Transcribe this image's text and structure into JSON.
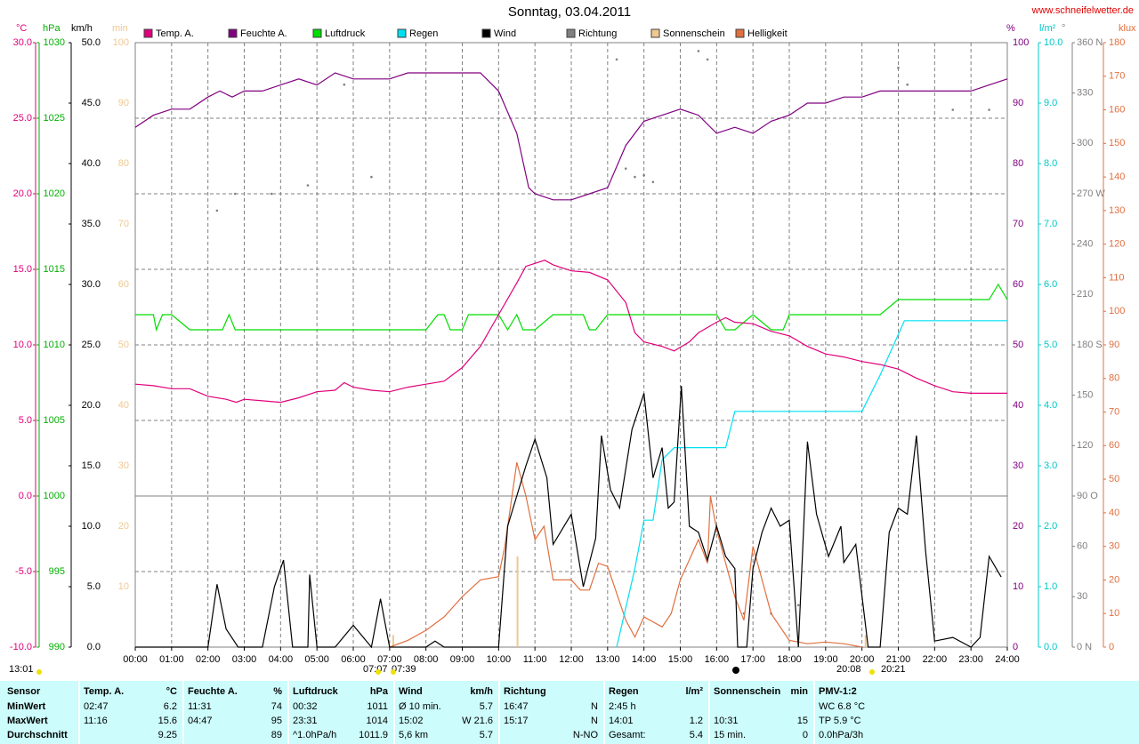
{
  "chart_data": {
    "type": "line",
    "title": "Sonntag, 03.04.2011",
    "source": "www.schneifelwetter.de",
    "xlim": [
      0,
      24
    ],
    "xticks": [
      {
        "value": 0,
        "label": "00:00"
      },
      {
        "value": 1,
        "label": "01:00"
      },
      {
        "value": 2,
        "label": "02:00"
      },
      {
        "value": 3,
        "label": "03:00"
      },
      {
        "value": 4,
        "label": "04:00"
      },
      {
        "value": 5,
        "label": "05:00"
      },
      {
        "value": 6,
        "label": "06:00"
      },
      {
        "value": 7,
        "label": "07:00"
      },
      {
        "value": 8,
        "label": "08:00"
      },
      {
        "value": 9,
        "label": "09:00"
      },
      {
        "value": 10,
        "label": "10:00"
      },
      {
        "value": 11,
        "label": "11:00"
      },
      {
        "value": 12,
        "label": "12:00"
      },
      {
        "value": 13,
        "label": "13:00"
      },
      {
        "value": 14,
        "label": "14:00"
      },
      {
        "value": 15,
        "label": "15:00"
      },
      {
        "value": 16,
        "label": "16:00"
      },
      {
        "value": 17,
        "label": "17:00"
      },
      {
        "value": 18,
        "label": "18:00"
      },
      {
        "value": 19,
        "label": "19:00"
      },
      {
        "value": 20,
        "label": "20:00"
      },
      {
        "value": 21,
        "label": "21:00"
      },
      {
        "value": 22,
        "label": "22:00"
      },
      {
        "value": 23,
        "label": "23:00"
      },
      {
        "value": 24,
        "label": "24:00"
      }
    ],
    "grid": true,
    "axes": [
      {
        "unit": "°C",
        "color": "#e0007a",
        "lim": [
          -10,
          30
        ],
        "ticks": [
          {
            "value": -10,
            "label": "-10.0"
          },
          {
            "value": -5,
            "label": "-5.0"
          },
          {
            "value": 0,
            "label": "0.0"
          },
          {
            "value": 5,
            "label": "5.0"
          },
          {
            "value": 10,
            "label": "10.0"
          },
          {
            "value": 15,
            "label": "15.0"
          },
          {
            "value": 20,
            "label": "20.0"
          },
          {
            "value": 25,
            "label": "25.0"
          },
          {
            "value": 30,
            "label": "30.0"
          }
        ]
      },
      {
        "unit": "hPa",
        "color": "#00b000",
        "lim": [
          990,
          1030
        ],
        "ticks": [
          990,
          995,
          1000,
          1005,
          1010,
          1015,
          1020,
          1025,
          1030
        ]
      },
      {
        "unit": "km/h",
        "color": "#000000",
        "lim": [
          0,
          50
        ],
        "ticks": [
          {
            "value": 0,
            "label": "0.0"
          },
          {
            "value": 5,
            "label": "5.0"
          },
          {
            "value": 10,
            "label": "10.0"
          },
          {
            "value": 15,
            "label": "15.0"
          },
          {
            "value": 20,
            "label": "20.0"
          },
          {
            "value": 25,
            "label": "25.0"
          },
          {
            "value": 30,
            "label": "30.0"
          },
          {
            "value": 35,
            "label": "35.0"
          },
          {
            "value": 40,
            "label": "40.0"
          },
          {
            "value": 45,
            "label": "45.0"
          },
          {
            "value": 50,
            "label": "50.0"
          }
        ]
      },
      {
        "unit": "min",
        "color": "#f0c890",
        "lim": [
          0,
          100
        ],
        "ticks": [
          10,
          20,
          30,
          40,
          50,
          60,
          70,
          80,
          90,
          100
        ]
      },
      {
        "unit": "%",
        "color": "#800080",
        "lim": [
          0,
          100
        ],
        "ticks": [
          0,
          10,
          20,
          30,
          40,
          50,
          60,
          70,
          80,
          90,
          100
        ]
      },
      {
        "unit": "l/m²",
        "color": "#00c8c8",
        "lim": [
          0,
          10
        ],
        "ticks": [
          {
            "value": 0,
            "label": "0.0"
          },
          {
            "value": 1,
            "label": "1.0"
          },
          {
            "value": 2,
            "label": "2.0"
          },
          {
            "value": 3,
            "label": "3.0"
          },
          {
            "value": 4,
            "label": "4.0"
          },
          {
            "value": 5,
            "label": "5.0"
          },
          {
            "value": 6,
            "label": "6.0"
          },
          {
            "value": 7,
            "label": "7.0"
          },
          {
            "value": 8,
            "label": "8.0"
          },
          {
            "value": 9,
            "label": "9.0"
          },
          {
            "value": 10,
            "label": "10.0"
          }
        ]
      },
      {
        "unit": "°",
        "color": "#808080",
        "lim": [
          0,
          360
        ],
        "ticks": [
          {
            "value": 0,
            "label": "0 N"
          },
          30,
          60,
          {
            "value": 90,
            "label": "90 O"
          },
          120,
          150,
          {
            "value": 180,
            "label": "180 S"
          },
          210,
          240,
          {
            "value": 270,
            "label": "270 W"
          },
          300,
          330,
          {
            "value": 360,
            "label": "360 N"
          }
        ]
      },
      {
        "unit": "klux",
        "color": "#e07040",
        "lim": [
          0,
          180
        ],
        "ticks": [
          0,
          10,
          20,
          30,
          40,
          50,
          60,
          70,
          80,
          90,
          100,
          110,
          120,
          130,
          140,
          150,
          160,
          170,
          180
        ]
      }
    ],
    "series": [
      {
        "name": "Temp. A.",
        "color": "#e0007a",
        "axis": 0,
        "style": "line",
        "x": [
          0,
          0.5,
          1,
          1.5,
          2,
          2.5,
          2.78,
          3,
          3.5,
          4,
          4.5,
          5,
          5.5,
          5.75,
          6,
          6.5,
          7,
          7.5,
          8,
          8.5,
          9,
          9.5,
          10,
          10.5,
          10.75,
          11.27,
          11.5,
          12,
          12.5,
          13,
          13.5,
          13.75,
          14,
          14.5,
          14.83,
          15.25,
          15.5,
          16,
          16.25,
          16.5,
          17,
          17.5,
          18,
          18.5,
          19,
          19.5,
          20,
          20.5,
          21,
          21.5,
          22,
          22.5,
          23,
          23.5,
          24
        ],
        "values": [
          7.4,
          7.3,
          7.1,
          7.1,
          6.6,
          6.4,
          6.2,
          6.4,
          6.3,
          6.2,
          6.5,
          6.9,
          7.0,
          7.5,
          7.2,
          7.0,
          6.9,
          7.2,
          7.4,
          7.6,
          8.5,
          9.9,
          12.0,
          14.1,
          15.2,
          15.6,
          15.3,
          14.9,
          14.8,
          14.3,
          12.8,
          10.8,
          10.2,
          9.9,
          9.6,
          10.2,
          10.8,
          11.5,
          11.8,
          11.5,
          11.4,
          10.9,
          10.6,
          9.9,
          9.4,
          9.2,
          8.9,
          8.7,
          8.4,
          7.8,
          7.3,
          6.9,
          6.8,
          6.8,
          6.8
        ]
      },
      {
        "name": "Feuchte A.",
        "color": "#800080",
        "axis": 4,
        "style": "line",
        "x": [
          0,
          0.5,
          1,
          1.5,
          2,
          2.33,
          2.67,
          3,
          3.5,
          4,
          4.5,
          5,
          5.5,
          6,
          6.5,
          7,
          7.5,
          8,
          8.5,
          9,
          9.5,
          10,
          10.5,
          10.83,
          11,
          11.5,
          12,
          12.5,
          13,
          13.5,
          14,
          14.5,
          15,
          15.5,
          16,
          16.5,
          17,
          17.5,
          18,
          18.5,
          19,
          19.5,
          20,
          20.5,
          21,
          21.5,
          22,
          22.5,
          23,
          23.5,
          24
        ],
        "values": [
          86,
          88,
          89,
          89,
          91,
          92,
          91,
          92,
          92,
          93,
          94,
          93,
          95,
          94,
          94,
          94,
          95,
          95,
          95,
          95,
          95,
          92,
          85,
          76,
          75,
          74,
          74,
          75,
          76,
          83,
          87,
          88,
          89,
          88,
          85,
          86,
          85,
          87,
          88,
          90,
          90,
          91,
          91,
          92,
          92,
          92,
          92,
          92,
          92,
          93,
          94
        ]
      },
      {
        "name": "Luftdruck",
        "color": "#00dd00",
        "axis": 1,
        "style": "line",
        "x": [
          0,
          0.5,
          0.58,
          0.75,
          1,
          1.5,
          2,
          2.4,
          2.58,
          2.75,
          3,
          8,
          8.33,
          8.5,
          8.67,
          9,
          9.17,
          9.33,
          9.5,
          10,
          10.25,
          10.5,
          10.67,
          11,
          11.5,
          12,
          12.33,
          12.5,
          12.67,
          13,
          16,
          16.25,
          16.5,
          17,
          17.5,
          17.83,
          18,
          20.5,
          21,
          23.5,
          23.75,
          24
        ],
        "values": [
          1012,
          1012,
          1011,
          1012,
          1012,
          1011,
          1011,
          1011,
          1012,
          1011,
          1011,
          1011,
          1012,
          1012,
          1011,
          1011,
          1012,
          1012,
          1012,
          1012,
          1011,
          1012,
          1011,
          1011,
          1012,
          1012,
          1012,
          1011,
          1011,
          1012,
          1012,
          1011,
          1011,
          1012,
          1011,
          1011,
          1012,
          1012,
          1013,
          1013,
          1014,
          1013
        ]
      },
      {
        "name": "Regen",
        "color": "#00e0f0",
        "axis": 5,
        "style": "line",
        "x": [
          13.25,
          13.75,
          14,
          14.25,
          14.5,
          14.83,
          16.25,
          16.5,
          20,
          20.5,
          21.17,
          24
        ],
        "values": [
          0,
          1.3,
          2.1,
          2.1,
          3.1,
          3.3,
          3.3,
          3.9,
          3.9,
          4.5,
          5.4,
          5.4
        ]
      },
      {
        "name": "Wind",
        "color": "#000000",
        "axis": 2,
        "style": "line",
        "x": [
          0,
          2,
          2.25,
          2.5,
          2.83,
          3.5,
          3.83,
          4.08,
          4.33,
          4.75,
          4.8,
          5,
          5.5,
          6,
          6.5,
          6.75,
          7,
          8,
          8.25,
          8.5,
          10,
          10.25,
          10.75,
          11,
          11.33,
          11.5,
          12,
          12.33,
          12.67,
          12.83,
          13.08,
          13.33,
          13.67,
          14,
          14.25,
          14.5,
          14.67,
          14.83,
          15.03,
          15.25,
          15.5,
          15.75,
          16,
          16.25,
          16.5,
          16.58,
          16.83,
          17,
          17.25,
          17.5,
          17.75,
          18,
          18.25,
          18.5,
          18.75,
          19.08,
          19.42,
          19.5,
          19.83,
          20.17,
          20.5,
          20.75,
          21,
          21.25,
          21.5,
          21.75,
          22,
          22.5,
          23,
          23.25,
          23.5,
          23.83
        ],
        "values": [
          0,
          0,
          5.2,
          1.5,
          0,
          0,
          5,
          7.2,
          0,
          0,
          6,
          0,
          0,
          1.8,
          0,
          4,
          0,
          0,
          0.5,
          0,
          0,
          10,
          15,
          17.2,
          14,
          8.5,
          11,
          5,
          9,
          17.5,
          13,
          11.5,
          18,
          21,
          14,
          16.5,
          11.5,
          12,
          21.6,
          10,
          9.5,
          7.2,
          10,
          7.5,
          6.5,
          0,
          0,
          6.5,
          9.5,
          11.5,
          10,
          10.5,
          0,
          17,
          11,
          7.5,
          10,
          7,
          8.5,
          0,
          0,
          9.5,
          11.5,
          11,
          17.5,
          8,
          0.5,
          0.8,
          0,
          0.8,
          7.5,
          5.8
        ]
      },
      {
        "name": "Richtung",
        "color": "#808080",
        "axis": 6,
        "style": "dots",
        "x": [
          2.25,
          2.75,
          3.75,
          4.75,
          5.75,
          6.5,
          13.25,
          13.5,
          13.75,
          14,
          14.25,
          15.5,
          15.75,
          16.75,
          17.5,
          18.25,
          21,
          21.25,
          22.5,
          23.5
        ],
        "values": [
          260,
          270,
          270,
          275,
          335,
          280,
          350,
          285,
          280,
          281,
          277,
          355,
          350,
          20,
          20,
          25,
          345,
          335,
          320,
          320
        ]
      },
      {
        "name": "Sonnenschein",
        "color": "#f0c890",
        "axis": 3,
        "style": "bars",
        "x": [
          7.1,
          10.52,
          20.1
        ],
        "values": [
          2,
          15,
          2
        ]
      },
      {
        "name": "Helligkeit",
        "color": "#e07040",
        "axis": 7,
        "style": "line",
        "x": [
          7,
          7.5,
          8,
          8.5,
          9,
          9.5,
          10,
          10.17,
          10.5,
          10.75,
          11,
          11.25,
          11.5,
          12,
          12.25,
          12.5,
          12.75,
          13,
          13.5,
          13.75,
          14,
          14.5,
          14.75,
          15,
          15.5,
          15.75,
          15.83,
          16,
          16.25,
          16.5,
          16.75,
          17,
          17.25,
          17.5,
          18,
          18.5,
          19,
          19.5,
          20
        ],
        "values": [
          0,
          2,
          5,
          9,
          15,
          20,
          21,
          30,
          55,
          45,
          32,
          36,
          20,
          20,
          17,
          17,
          25,
          24,
          8,
          3,
          9,
          6,
          10,
          20,
          32,
          25,
          45,
          35,
          25,
          15,
          8,
          30,
          20,
          10,
          2,
          1,
          1.5,
          1,
          0
        ]
      }
    ],
    "annotations": [
      "13:01",
      "07:07",
      "07:39",
      "20:08",
      "20:21"
    ]
  },
  "table": {
    "header": [
      {
        "l": "Sensor"
      },
      {
        "l": "Temp. A.",
        "r": "°C"
      },
      {
        "l": "Feuchte A.",
        "r": "%"
      },
      {
        "l": "Luftdruck",
        "r": "hPa"
      },
      {
        "l": "Wind",
        "r": "km/h"
      },
      {
        "l": "Richtung"
      },
      {
        "l": "Regen",
        "r": "l/m²"
      },
      {
        "l": "Sonnenschein",
        "r": "min"
      },
      {
        "l": "PMV-1:2"
      }
    ],
    "rows": [
      [
        {
          "l": "MinWert"
        },
        {
          "l": "02:47",
          "r": "6.2"
        },
        {
          "l": "11:31",
          "r": "74"
        },
        {
          "l": "00:32",
          "r": "1011"
        },
        {
          "l": "Ø 10 min.",
          "r": "5.7"
        },
        {
          "l": "16:47",
          "r": "N"
        },
        {
          "l": "2:45 h"
        },
        {},
        {
          "l": "WC 6.8 °C"
        }
      ],
      [
        {
          "l": "MaxWert"
        },
        {
          "l": "11:16",
          "r": "15.6"
        },
        {
          "l": "04:47",
          "r": "95"
        },
        {
          "l": "23:31",
          "r": "1014"
        },
        {
          "l": "15:02",
          "r": "W 21.6"
        },
        {
          "l": "15:17",
          "r": "N"
        },
        {
          "l": "14:01",
          "r": "1.2"
        },
        {
          "l": "10:31",
          "r": "15"
        },
        {
          "l": "TP 5.9 °C"
        }
      ],
      [
        {
          "l": "Durchschnitt"
        },
        {
          "r": "9.25"
        },
        {
          "r": "89"
        },
        {
          "l": "^1.0hPa/h",
          "r": "1011.9"
        },
        {
          "l": "5,6 km",
          "r": "5.7"
        },
        {
          "r": "N-NO"
        },
        {
          "l": "Gesamt:",
          "r": "5.4"
        },
        {
          "l": "15 min.",
          "r": "0"
        },
        {
          "l": "0.0hPa/3h"
        }
      ]
    ]
  }
}
